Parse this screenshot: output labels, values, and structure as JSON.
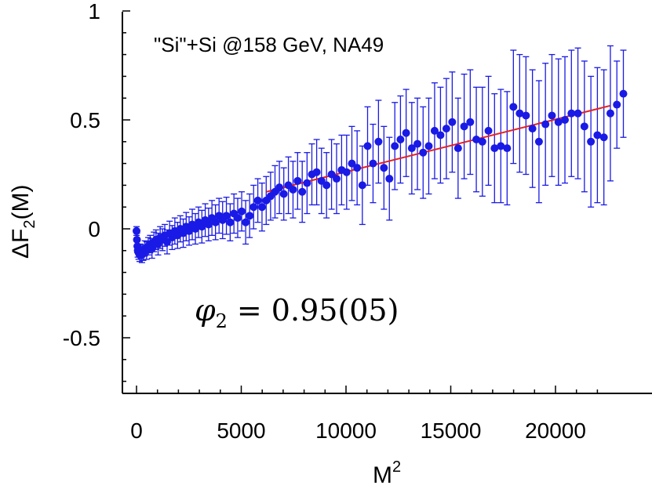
{
  "chart_data": {
    "type": "scatter",
    "annotation": "\"Si\"+Si @158 GeV, NA49",
    "phi_annotation": {
      "symbol": "φ",
      "subscript": "2",
      "text": "= 0.95(05)"
    },
    "xlabel": {
      "base": "M",
      "sup": "2"
    },
    "ylabel": {
      "base": "ΔF",
      "sub": "2",
      "suffix": "(M)"
    },
    "xlim": [
      -600,
      23000
    ],
    "ylim": [
      -0.75,
      1.0
    ],
    "xticks": [
      0,
      5000,
      10000,
      15000,
      20000
    ],
    "xtick_labels": [
      "0",
      "5000",
      "10000",
      "15000",
      "20000"
    ],
    "yticks": [
      -0.5,
      0,
      0.5,
      1
    ],
    "ytick_labels": [
      "-0.5",
      "0",
      "0.5",
      "1"
    ],
    "colors": {
      "points": "#1a1ae6",
      "fit": "#e62020",
      "axis": "#000000"
    },
    "points": [
      {
        "x": 0,
        "y": -0.01,
        "e": 0.02
      },
      {
        "x": 20,
        "y": -0.05,
        "e": 0.03
      },
      {
        "x": 40,
        "y": -0.08,
        "e": 0.03
      },
      {
        "x": 60,
        "y": -0.1,
        "e": 0.03
      },
      {
        "x": 100,
        "y": -0.11,
        "e": 0.03
      },
      {
        "x": 150,
        "y": -0.12,
        "e": 0.03
      },
      {
        "x": 200,
        "y": -0.1,
        "e": 0.03
      },
      {
        "x": 260,
        "y": -0.12,
        "e": 0.035
      },
      {
        "x": 320,
        "y": -0.11,
        "e": 0.035
      },
      {
        "x": 400,
        "y": -0.09,
        "e": 0.035
      },
      {
        "x": 480,
        "y": -0.1,
        "e": 0.04
      },
      {
        "x": 560,
        "y": -0.08,
        "e": 0.04
      },
      {
        "x": 650,
        "y": -0.07,
        "e": 0.04
      },
      {
        "x": 740,
        "y": -0.09,
        "e": 0.045
      },
      {
        "x": 830,
        "y": -0.06,
        "e": 0.045
      },
      {
        "x": 930,
        "y": -0.05,
        "e": 0.045
      },
      {
        "x": 1030,
        "y": -0.07,
        "e": 0.05
      },
      {
        "x": 1130,
        "y": -0.04,
        "e": 0.05
      },
      {
        "x": 1240,
        "y": -0.05,
        "e": 0.05
      },
      {
        "x": 1350,
        "y": -0.03,
        "e": 0.05
      },
      {
        "x": 1460,
        "y": -0.06,
        "e": 0.055
      },
      {
        "x": 1580,
        "y": -0.02,
        "e": 0.055
      },
      {
        "x": 1700,
        "y": -0.04,
        "e": 0.055
      },
      {
        "x": 1830,
        "y": -0.01,
        "e": 0.06
      },
      {
        "x": 1960,
        "y": -0.03,
        "e": 0.06
      },
      {
        "x": 2090,
        "y": 0.0,
        "e": 0.06
      },
      {
        "x": 2230,
        "y": -0.02,
        "e": 0.065
      },
      {
        "x": 2370,
        "y": 0.01,
        "e": 0.065
      },
      {
        "x": 2510,
        "y": -0.01,
        "e": 0.065
      },
      {
        "x": 2660,
        "y": 0.02,
        "e": 0.07
      },
      {
        "x": 2810,
        "y": 0.0,
        "e": 0.07
      },
      {
        "x": 2960,
        "y": 0.03,
        "e": 0.07
      },
      {
        "x": 3120,
        "y": 0.01,
        "e": 0.075
      },
      {
        "x": 3280,
        "y": 0.04,
        "e": 0.075
      },
      {
        "x": 3440,
        "y": 0.02,
        "e": 0.075
      },
      {
        "x": 3600,
        "y": 0.05,
        "e": 0.08
      },
      {
        "x": 3770,
        "y": 0.03,
        "e": 0.08
      },
      {
        "x": 3940,
        "y": 0.06,
        "e": 0.08
      },
      {
        "x": 4110,
        "y": 0.04,
        "e": 0.085
      },
      {
        "x": 4290,
        "y": 0.06,
        "e": 0.085
      },
      {
        "x": 4470,
        "y": 0.03,
        "e": 0.085
      },
      {
        "x": 4650,
        "y": 0.07,
        "e": 0.09
      },
      {
        "x": 4830,
        "y": 0.05,
        "e": 0.09
      },
      {
        "x": 5020,
        "y": 0.08,
        "e": 0.09
      },
      {
        "x": 5210,
        "y": 0.03,
        "e": 0.1
      },
      {
        "x": 5400,
        "y": 0.06,
        "e": 0.1
      },
      {
        "x": 5590,
        "y": 0.1,
        "e": 0.1
      },
      {
        "x": 5790,
        "y": 0.13,
        "e": 0.1
      },
      {
        "x": 5990,
        "y": 0.1,
        "e": 0.11
      },
      {
        "x": 6190,
        "y": 0.13,
        "e": 0.11
      },
      {
        "x": 6400,
        "y": 0.15,
        "e": 0.11
      },
      {
        "x": 6610,
        "y": 0.17,
        "e": 0.12
      },
      {
        "x": 6820,
        "y": 0.19,
        "e": 0.12
      },
      {
        "x": 7030,
        "y": 0.16,
        "e": 0.12
      },
      {
        "x": 7250,
        "y": 0.2,
        "e": 0.13
      },
      {
        "x": 7470,
        "y": 0.18,
        "e": 0.13
      },
      {
        "x": 7690,
        "y": 0.22,
        "e": 0.13
      },
      {
        "x": 7910,
        "y": 0.17,
        "e": 0.14
      },
      {
        "x": 8140,
        "y": 0.21,
        "e": 0.14
      },
      {
        "x": 8370,
        "y": 0.25,
        "e": 0.14
      },
      {
        "x": 8600,
        "y": 0.26,
        "e": 0.15
      },
      {
        "x": 8830,
        "y": 0.22,
        "e": 0.15
      },
      {
        "x": 9070,
        "y": 0.2,
        "e": 0.15
      },
      {
        "x": 9310,
        "y": 0.25,
        "e": 0.16
      },
      {
        "x": 9550,
        "y": 0.23,
        "e": 0.16
      },
      {
        "x": 9790,
        "y": 0.27,
        "e": 0.16
      },
      {
        "x": 10030,
        "y": 0.26,
        "e": 0.17
      },
      {
        "x": 10280,
        "y": 0.3,
        "e": 0.17
      },
      {
        "x": 10530,
        "y": 0.28,
        "e": 0.17
      },
      {
        "x": 10780,
        "y": 0.2,
        "e": 0.18
      },
      {
        "x": 11030,
        "y": 0.38,
        "e": 0.18
      },
      {
        "x": 11290,
        "y": 0.3,
        "e": 0.18
      },
      {
        "x": 11550,
        "y": 0.4,
        "e": 0.19
      },
      {
        "x": 11810,
        "y": 0.28,
        "e": 0.19
      },
      {
        "x": 12070,
        "y": 0.23,
        "e": 0.19
      },
      {
        "x": 12330,
        "y": 0.38,
        "e": 0.2
      },
      {
        "x": 12600,
        "y": 0.41,
        "e": 0.2
      },
      {
        "x": 12870,
        "y": 0.44,
        "e": 0.2
      },
      {
        "x": 13140,
        "y": 0.37,
        "e": 0.21
      },
      {
        "x": 13410,
        "y": 0.39,
        "e": 0.21
      },
      {
        "x": 13680,
        "y": 0.35,
        "e": 0.21
      },
      {
        "x": 13950,
        "y": 0.38,
        "e": 0.22
      },
      {
        "x": 14230,
        "y": 0.45,
        "e": 0.22
      },
      {
        "x": 14510,
        "y": 0.43,
        "e": 0.22
      },
      {
        "x": 14790,
        "y": 0.46,
        "e": 0.23
      },
      {
        "x": 15070,
        "y": 0.49,
        "e": 0.23
      },
      {
        "x": 15350,
        "y": 0.37,
        "e": 0.23
      },
      {
        "x": 15640,
        "y": 0.47,
        "e": 0.24
      },
      {
        "x": 15930,
        "y": 0.49,
        "e": 0.24
      },
      {
        "x": 16220,
        "y": 0.41,
        "e": 0.24
      },
      {
        "x": 16510,
        "y": 0.4,
        "e": 0.25
      },
      {
        "x": 16800,
        "y": 0.45,
        "e": 0.25
      },
      {
        "x": 17090,
        "y": 0.37,
        "e": 0.25
      },
      {
        "x": 17390,
        "y": 0.38,
        "e": 0.26
      },
      {
        "x": 17690,
        "y": 0.37,
        "e": 0.26
      },
      {
        "x": 17990,
        "y": 0.56,
        "e": 0.26
      },
      {
        "x": 18290,
        "y": 0.53,
        "e": 0.27
      },
      {
        "x": 18590,
        "y": 0.52,
        "e": 0.27
      },
      {
        "x": 18900,
        "y": 0.46,
        "e": 0.27
      },
      {
        "x": 19210,
        "y": 0.4,
        "e": 0.28
      },
      {
        "x": 19520,
        "y": 0.48,
        "e": 0.28
      },
      {
        "x": 19830,
        "y": 0.52,
        "e": 0.28
      },
      {
        "x": 20140,
        "y": 0.49,
        "e": 0.29
      },
      {
        "x": 20450,
        "y": 0.5,
        "e": 0.29
      },
      {
        "x": 20760,
        "y": 0.53,
        "e": 0.29
      },
      {
        "x": 21070,
        "y": 0.53,
        "e": 0.3
      },
      {
        "x": 21380,
        "y": 0.47,
        "e": 0.3
      },
      {
        "x": 21690,
        "y": 0.4,
        "e": 0.3
      },
      {
        "x": 22000,
        "y": 0.43,
        "e": 0.31
      },
      {
        "x": 22310,
        "y": 0.42,
        "e": 0.31
      },
      {
        "x": 22620,
        "y": 0.53,
        "e": 0.31
      },
      {
        "x": 22930,
        "y": 0.57,
        "e": 0.2
      },
      {
        "x": 23240,
        "y": 0.62,
        "e": 0.2
      }
    ],
    "fit": {
      "x_start": 6200,
      "x_end": 22600,
      "y_start": 0.17,
      "y_end": 0.565
    }
  }
}
